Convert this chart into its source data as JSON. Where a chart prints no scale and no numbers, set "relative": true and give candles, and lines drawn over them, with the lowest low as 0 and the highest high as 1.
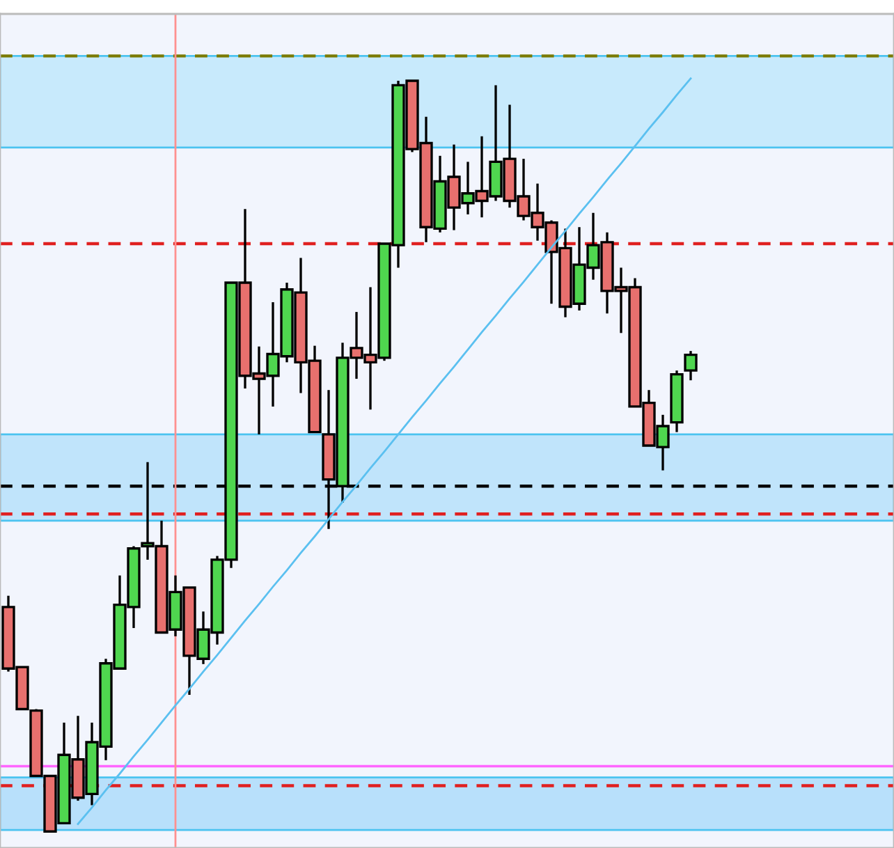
{
  "chart_data": {
    "type": "candlestick",
    "relative": true,
    "categories": [
      null,
      null,
      null,
      null,
      null,
      null,
      null,
      null,
      null,
      null,
      null,
      null,
      null,
      null,
      null,
      null,
      null,
      null,
      null,
      null,
      null,
      null,
      null,
      null,
      null,
      null,
      null,
      null,
      null,
      null,
      null,
      null,
      null,
      null,
      null,
      null,
      null,
      null,
      null,
      null,
      null,
      null,
      null,
      null,
      null,
      null,
      null,
      null,
      null,
      null
    ],
    "ohlc": [
      [
        0.299,
        0.314,
        0.213,
        0.217
      ],
      [
        0.219,
        0.219,
        0.163,
        0.163
      ],
      [
        0.161,
        0.163,
        0.074,
        0.074
      ],
      [
        0.074,
        0.074,
        0,
        0
      ],
      [
        0.011,
        0.145,
        0.011,
        0.102
      ],
      [
        0.096,
        0.154,
        0.041,
        0.045
      ],
      [
        0.05,
        0.145,
        0.035,
        0.119
      ],
      [
        0.113,
        0.23,
        0.095,
        0.224
      ],
      [
        0.217,
        0.341,
        0.217,
        0.302
      ],
      [
        0.299,
        0.38,
        0.271,
        0.377
      ],
      [
        0.38,
        0.492,
        0.362,
        0.384
      ],
      [
        0.38,
        0.414,
        0.265,
        0.265
      ],
      [
        0.269,
        0.341,
        0.26,
        0.319
      ],
      [
        0.325,
        0.325,
        0.182,
        0.234
      ],
      [
        0.23,
        0.293,
        0.223,
        0.269
      ],
      [
        0.265,
        0.367,
        0.249,
        0.362
      ],
      [
        0.362,
        0.731,
        0.351,
        0.731
      ],
      [
        0.731,
        0.829,
        0.59,
        0.607
      ],
      [
        0.61,
        0.646,
        0.529,
        0.603
      ],
      [
        0.607,
        0.705,
        0.566,
        0.636
      ],
      [
        0.633,
        0.731,
        0.625,
        0.722
      ],
      [
        0.718,
        0.764,
        0.584,
        0.625
      ],
      [
        0.627,
        0.647,
        0.532,
        0.532
      ],
      [
        0.529,
        0.588,
        0.403,
        0.469
      ],
      [
        0.46,
        0.651,
        0.438,
        0.631
      ],
      [
        0.644,
        0.692,
        0.603,
        0.631
      ],
      [
        0.635,
        0.725,
        0.562,
        0.625
      ],
      [
        0.631,
        0.783,
        0.627,
        0.783
      ],
      [
        0.781,
        1.0,
        0.751,
        0.994
      ],
      [
        1.0,
        1.0,
        0.905,
        0.909
      ],
      [
        0.917,
        0.952,
        0.785,
        0.805
      ],
      [
        0.803,
        0.9,
        0.798,
        0.866
      ],
      [
        0.872,
        0.915,
        0.801,
        0.831
      ],
      [
        0.837,
        0.892,
        0.822,
        0.85
      ],
      [
        0.853,
        0.926,
        0.818,
        0.84
      ],
      [
        0.846,
        0.994,
        0.84,
        0.892
      ],
      [
        0.896,
        0.968,
        0.831,
        0.84
      ],
      [
        0.846,
        0.896,
        0.814,
        0.82
      ],
      [
        0.824,
        0.863,
        0.787,
        0.805
      ],
      [
        0.811,
        0.814,
        0.703,
        0.772
      ],
      [
        0.777,
        0.803,
        0.685,
        0.699
      ],
      [
        0.703,
        0.805,
        0.694,
        0.755
      ],
      [
        0.751,
        0.824,
        0.735,
        0.781
      ],
      [
        0.785,
        0.798,
        0.69,
        0.72
      ],
      [
        0.725,
        0.751,
        0.664,
        0.72
      ],
      [
        0.725,
        0.737,
        0.566,
        0.566
      ],
      [
        0.571,
        0.588,
        0.514,
        0.514
      ],
      [
        0.512,
        0.555,
        0.481,
        0.54
      ],
      [
        0.545,
        0.614,
        0.532,
        0.609
      ],
      [
        0.614,
        0.64,
        0.601,
        0.635
      ]
    ],
    "colors": [
      "#e8706e",
      "#e8706e",
      "#e8706e",
      "#e8706e",
      "#4fd64f",
      "#e8706e",
      "#4fd64f",
      "#4fd64f",
      "#4fd64f",
      "#4fd64f",
      "#4fd64f",
      "#e8706e",
      "#4fd64f",
      "#e8706e",
      "#4fd64f",
      "#4fd64f",
      "#4fd64f",
      "#e8706e",
      "#e8706e",
      "#4fd64f",
      "#4fd64f",
      "#e8706e",
      "#e8706e",
      "#e8706e",
      "#4fd64f",
      "#e8706e",
      "#e8706e",
      "#4fd64f",
      "#4fd64f",
      "#e8706e",
      "#e8706e",
      "#4fd64f",
      "#e8706e",
      "#4fd64f",
      "#e8706e",
      "#4fd64f",
      "#e8706e",
      "#e8706e",
      "#e8706e",
      "#e8706e",
      "#e8706e",
      "#4fd64f",
      "#4fd64f",
      "#e8706e",
      "#e8706e",
      "#e8706e",
      "#e8706e",
      "#4fd64f",
      "#4fd64f",
      "#4fd64f"
    ],
    "series": [
      {
        "type": "line",
        "values": [
          null,
          null,
          null,
          null,
          null,
          0.01,
          0.032,
          0.055,
          0.077,
          0.1,
          0.122,
          0.145,
          0.168,
          0.19,
          0.213,
          0.235,
          0.258,
          0.281,
          0.303,
          0.326,
          0.348,
          0.371,
          0.393,
          0.416,
          0.439,
          0.461,
          0.484,
          0.506,
          0.529,
          0.552,
          0.574,
          0.597,
          0.619,
          0.642,
          0.665,
          0.687,
          0.71,
          0.732,
          0.755,
          0.778,
          0.8,
          0.823,
          0.845,
          0.868,
          0.89,
          0.913,
          0.936,
          0.958,
          0.981,
          1.003
        ],
        "color": "#5bc0f0"
      }
    ],
    "bands": [
      {
        "axis": "y",
        "from": 0.911,
        "to": 1.033,
        "color": "#c8eafc"
      },
      {
        "axis": "y",
        "from": 0.414,
        "to": 0.529,
        "color": "#c0e4fb"
      },
      {
        "axis": "y",
        "from": 0.002,
        "to": 0.072,
        "color": "#b8e0fb"
      }
    ],
    "ref_lines": [
      {
        "axis": "y",
        "value": 1.033,
        "color": "#7a7a00",
        "line_style": "dashed"
      },
      {
        "axis": "y",
        "value": 0.783,
        "color": "#e02020",
        "line_style": "dashed"
      },
      {
        "axis": "y",
        "value": 0.46,
        "color": "#000000",
        "line_style": "dashed"
      },
      {
        "axis": "y",
        "value": 0.423,
        "color": "#e02020",
        "line_style": "dashed"
      },
      {
        "axis": "y",
        "value": 0.087,
        "color": "#ff66ff",
        "line_style": "solid"
      },
      {
        "axis": "y",
        "value": 0.061,
        "color": "#e02020",
        "line_style": "dashed"
      }
    ]
  }
}
